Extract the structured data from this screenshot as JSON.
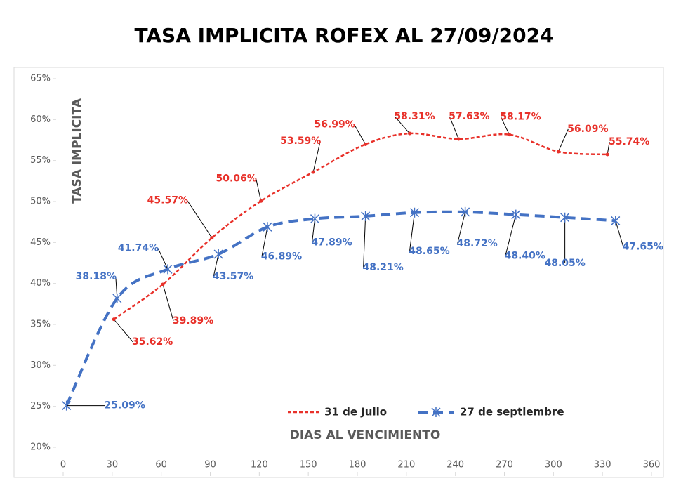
{
  "chart_data": {
    "type": "line",
    "title": "TASA IMPLICITA ROFEX AL 27/09/2024",
    "x_label": "DIAS AL VENCIMIENTO",
    "y_label": "TASA IMPLICITA",
    "xlim": [
      0,
      360
    ],
    "xticks": [
      0,
      30,
      60,
      90,
      120,
      150,
      180,
      210,
      240,
      270,
      300,
      330,
      360
    ],
    "ylim": [
      20,
      65
    ],
    "yticks": [
      {
        "value": 20,
        "label": "20%"
      },
      {
        "value": 25,
        "label": "25%"
      },
      {
        "value": 30,
        "label": "30%"
      },
      {
        "value": 35,
        "label": "35%"
      },
      {
        "value": 40,
        "label": "40%"
      },
      {
        "value": 45,
        "label": "45%"
      },
      {
        "value": 50,
        "label": "50%"
      },
      {
        "value": 55,
        "label": "55%"
      },
      {
        "value": 60,
        "label": "60%"
      },
      {
        "value": 65,
        "label": "65%"
      }
    ],
    "series": [
      {
        "name": "31 de Julio",
        "color": "#e8312a",
        "x": [
          31,
          61,
          91,
          121,
          153,
          185,
          212,
          242,
          273,
          303,
          333
        ],
        "values": [
          35.62,
          39.89,
          45.57,
          50.06,
          53.59,
          56.99,
          58.31,
          57.63,
          58.17,
          56.09,
          55.74
        ],
        "value_labels": [
          "35.62%",
          "39.89%",
          "45.57%",
          "50.06%",
          "53.59%",
          "56.99%",
          "58.31%",
          "57.63%",
          "58.17%",
          "56.09%",
          "55.74%"
        ]
      },
      {
        "name": "27 de septiembre",
        "color": "#4472c4",
        "x": [
          2,
          33,
          64,
          95,
          125,
          154,
          185,
          215,
          246,
          277,
          307,
          338
        ],
        "values": [
          25.09,
          38.18,
          41.74,
          43.57,
          46.89,
          47.89,
          48.21,
          48.65,
          48.72,
          48.4,
          48.05,
          47.65
        ],
        "value_labels": [
          "25.09%",
          "38.18%",
          "41.74%",
          "43.57%",
          "46.89%",
          "47.89%",
          "48.21%",
          "48.65%",
          "48.72%",
          "48.40%",
          "48.05%",
          "47.65%"
        ]
      }
    ]
  }
}
